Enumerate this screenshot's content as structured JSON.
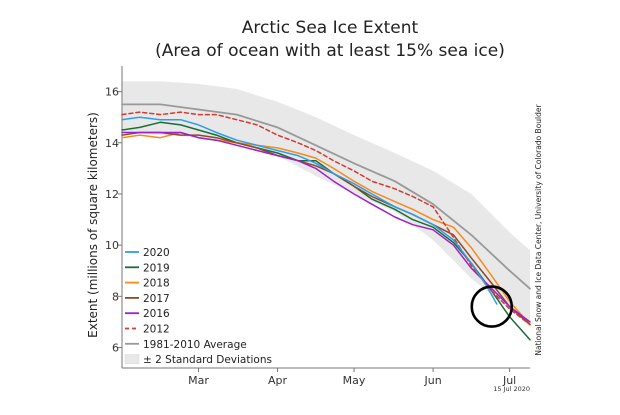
{
  "chart_data": {
    "type": "line",
    "title": "Arctic Sea Ice Extent",
    "subtitle": "(Area of ocean with at least 15% sea ice)",
    "ylabel": "Extent (millions of square kilometers)",
    "xlabel": "",
    "ylim": [
      5.2,
      17
    ],
    "yticks": [
      6,
      8,
      10,
      12,
      14,
      16
    ],
    "xlim": [
      45,
      205
    ],
    "month_ticks": [
      {
        "label": "Mar",
        "day": 75
      },
      {
        "label": "Apr",
        "day": 106
      },
      {
        "label": "May",
        "day": 136
      },
      {
        "label": "Jun",
        "day": 167
      },
      {
        "label": "Jul",
        "day": 197
      }
    ],
    "grid": false,
    "legend_position": "lower-left",
    "credit": "National Snow and Ice Data Center, University of Colorado Boulder",
    "date_label": "15 Jul 2020",
    "annotation": "black circle highlighting the 2020 line near late June",
    "annotation_center": {
      "day": 190,
      "value": 7.6
    },
    "band": {
      "name": "± 2 Standard Deviations",
      "color": "#e8e8e8",
      "x": [
        45,
        60,
        75,
        90,
        106,
        121,
        136,
        152,
        167,
        182,
        197,
        205
      ],
      "upper": [
        16.4,
        16.4,
        16.3,
        16.1,
        15.6,
        15.0,
        14.3,
        13.6,
        12.9,
        12.0,
        10.5,
        9.8
      ],
      "lower": [
        14.4,
        14.3,
        14.2,
        13.9,
        13.5,
        12.7,
        12.0,
        11.3,
        10.2,
        8.7,
        7.5,
        6.8
      ]
    },
    "series": [
      {
        "name": "1981-2010 Average",
        "color": "#999999",
        "dash": "",
        "x": [
          45,
          60,
          75,
          90,
          106,
          121,
          136,
          152,
          167,
          182,
          197,
          205
        ],
        "values": [
          15.5,
          15.5,
          15.3,
          15.1,
          14.6,
          13.9,
          13.2,
          12.5,
          11.6,
          10.4,
          9.0,
          8.3
        ]
      },
      {
        "name": "2020",
        "color": "#2f9ee5",
        "dash": "",
        "x": [
          45,
          52,
          60,
          68,
          75,
          82,
          90,
          98,
          106,
          114,
          121,
          128,
          136,
          143,
          152,
          159,
          167,
          175,
          182,
          188,
          192
        ],
        "values": [
          14.9,
          15.0,
          14.9,
          14.9,
          14.7,
          14.4,
          14.1,
          13.9,
          13.7,
          13.5,
          13.2,
          12.8,
          12.4,
          12.0,
          11.5,
          11.2,
          10.8,
          10.2,
          9.3,
          8.4,
          7.7
        ]
      },
      {
        "name": "2019",
        "color": "#1a6e35",
        "dash": "",
        "x": [
          45,
          52,
          60,
          68,
          75,
          82,
          90,
          98,
          106,
          114,
          121,
          128,
          136,
          143,
          152,
          159,
          167,
          175,
          182,
          190,
          197,
          205
        ],
        "values": [
          14.5,
          14.6,
          14.8,
          14.7,
          14.5,
          14.3,
          14.0,
          13.8,
          13.6,
          13.3,
          13.3,
          12.8,
          12.3,
          11.8,
          11.4,
          11.0,
          10.7,
          10.1,
          9.3,
          8.2,
          7.2,
          6.3
        ]
      },
      {
        "name": "2018",
        "color": "#f58a1f",
        "dash": "",
        "x": [
          45,
          52,
          60,
          68,
          75,
          82,
          90,
          98,
          106,
          114,
          121,
          128,
          136,
          143,
          152,
          159,
          167,
          175,
          182,
          190,
          197,
          205
        ],
        "values": [
          14.2,
          14.3,
          14.2,
          14.4,
          14.2,
          14.1,
          14.0,
          13.9,
          13.8,
          13.6,
          13.4,
          13.0,
          12.5,
          12.1,
          11.7,
          11.4,
          11.0,
          10.7,
          9.9,
          8.8,
          7.8,
          6.9
        ]
      },
      {
        "name": "2017",
        "color": "#8b4a2a",
        "dash": "",
        "x": [
          45,
          52,
          60,
          68,
          75,
          82,
          90,
          98,
          106,
          114,
          121,
          128,
          136,
          143,
          152,
          159,
          167,
          175,
          182,
          190,
          197,
          205
        ],
        "values": [
          14.3,
          14.4,
          14.4,
          14.3,
          14.3,
          14.2,
          14.0,
          13.8,
          13.5,
          13.3,
          13.1,
          12.8,
          12.3,
          11.9,
          11.5,
          11.2,
          10.8,
          10.4,
          9.5,
          8.5,
          7.6,
          6.9
        ]
      },
      {
        "name": "2016",
        "color": "#a020c8",
        "dash": "",
        "x": [
          45,
          52,
          60,
          68,
          75,
          82,
          90,
          98,
          106,
          114,
          121,
          128,
          136,
          143,
          152,
          159,
          167,
          175,
          182,
          190,
          197,
          205
        ],
        "values": [
          14.4,
          14.4,
          14.4,
          14.4,
          14.2,
          14.1,
          13.9,
          13.7,
          13.5,
          13.3,
          13.0,
          12.5,
          12.0,
          11.6,
          11.1,
          10.8,
          10.6,
          10.0,
          9.1,
          8.3,
          7.6,
          7.0
        ]
      },
      {
        "name": "2012",
        "color": "#d43a2f",
        "dash": "4,3",
        "x": [
          45,
          52,
          60,
          68,
          75,
          82,
          90,
          98,
          106,
          114,
          121,
          128,
          136,
          143,
          152,
          159,
          167,
          175,
          182,
          190,
          197,
          205
        ],
        "values": [
          15.1,
          15.2,
          15.1,
          15.2,
          15.1,
          15.1,
          14.9,
          14.7,
          14.3,
          14.0,
          13.7,
          13.3,
          12.9,
          12.5,
          12.2,
          11.9,
          11.5,
          10.3,
          9.2,
          8.2,
          7.5,
          6.9
        ]
      }
    ],
    "legend": [
      {
        "label": "2020",
        "color": "#2f9ee5",
        "dash": "",
        "kind": "line"
      },
      {
        "label": "2019",
        "color": "#1a6e35",
        "dash": "",
        "kind": "line"
      },
      {
        "label": "2018",
        "color": "#f58a1f",
        "dash": "",
        "kind": "line"
      },
      {
        "label": "2017",
        "color": "#8b4a2a",
        "dash": "",
        "kind": "line"
      },
      {
        "label": "2016",
        "color": "#a020c8",
        "dash": "",
        "kind": "line"
      },
      {
        "label": "2012",
        "color": "#d43a2f",
        "dash": "4,3",
        "kind": "line"
      },
      {
        "label": "1981-2010 Average",
        "color": "#999999",
        "dash": "",
        "kind": "line"
      },
      {
        "label": "± 2 Standard Deviations",
        "color": "#e8e8e8",
        "dash": "",
        "kind": "band"
      }
    ]
  }
}
